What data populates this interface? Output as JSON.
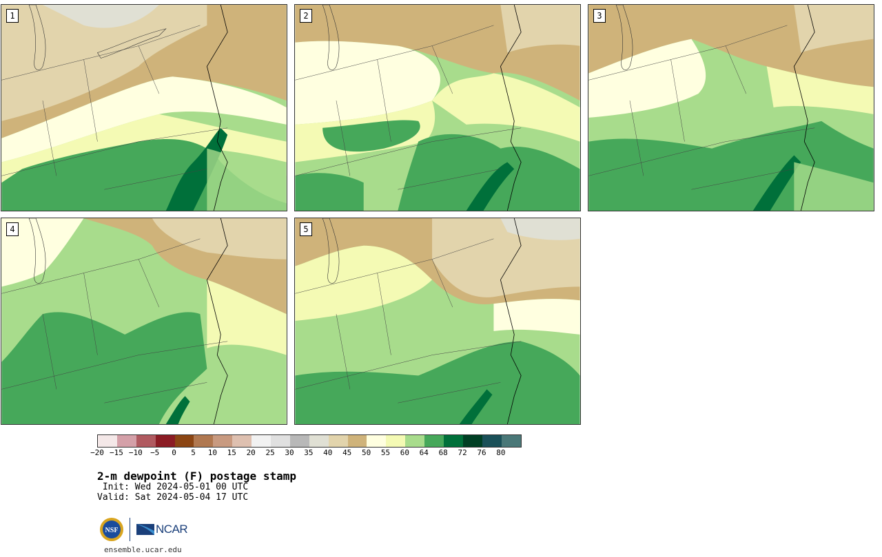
{
  "panels": [
    {
      "label": "1"
    },
    {
      "label": "2"
    },
    {
      "label": "3"
    },
    {
      "label": "4"
    },
    {
      "label": "5"
    }
  ],
  "colorbar": {
    "colors": [
      "#f4e8e8",
      "#d4a0a8",
      "#b05a60",
      "#8b1c24",
      "#8b4513",
      "#b07850",
      "#c89a80",
      "#dec0b0",
      "#f2f2f2",
      "#e0e0e0",
      "#b8b8b8",
      "#e0e0d4",
      "#e2d4ac",
      "#cfb37a",
      "#ffffe0",
      "#f4fab4",
      "#a8dc8c",
      "#46a85a",
      "#00703a",
      "#003f24",
      "#1a5058",
      "#4a7878"
    ],
    "ticks": [
      "−20",
      "−15",
      "−10",
      "−5",
      "0",
      "5",
      "10",
      "15",
      "20",
      "25",
      "30",
      "35",
      "40",
      "45",
      "50",
      "55",
      "60",
      "64",
      "68",
      "72",
      "76",
      "80"
    ]
  },
  "title": "2-m dewpoint (F) postage stamp",
  "init": " Init: Wed 2024-05-01 00 UTC",
  "valid": "Valid: Sat 2024-05-04 17 UTC",
  "logos": {
    "ncar": "NCAR",
    "nsf": "NSF"
  },
  "site": "ensemble.ucar.edu"
}
